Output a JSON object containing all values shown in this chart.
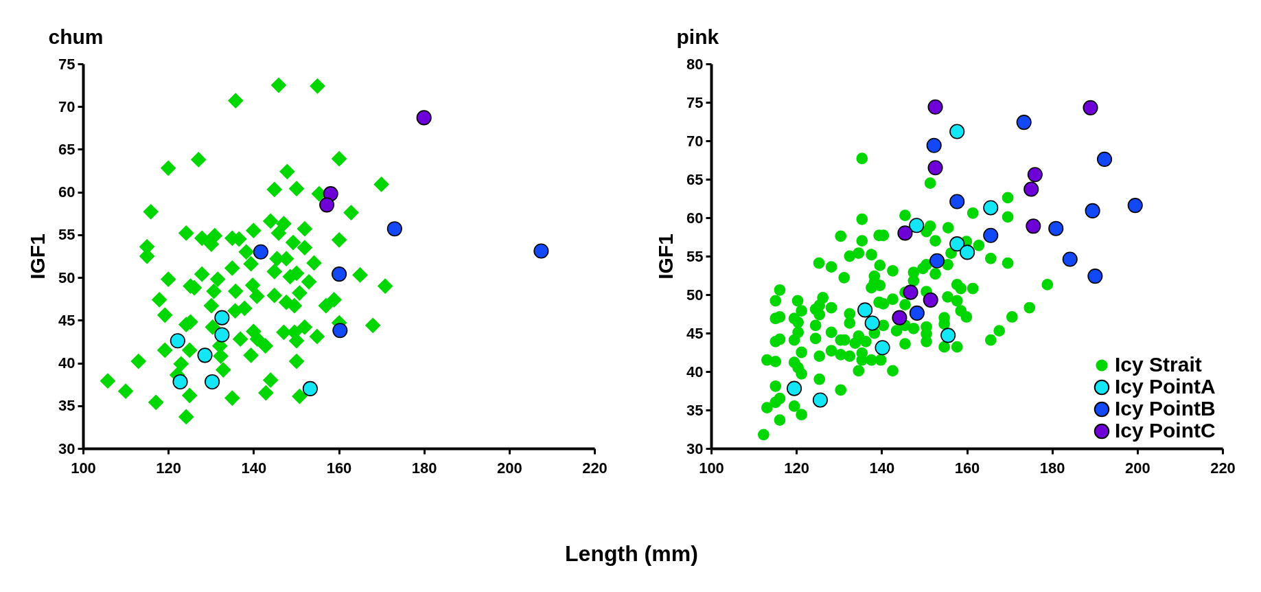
{
  "chart_data": [
    {
      "type": "scatter",
      "title": "chum",
      "xlabel": "Length (mm)",
      "ylabel": "IGF1",
      "xlim": [
        100,
        220
      ],
      "xticks": [
        100,
        120,
        140,
        160,
        180,
        200,
        220
      ],
      "ylim": [
        30,
        75
      ],
      "yticks": [
        30,
        35,
        40,
        45,
        50,
        55,
        60,
        65,
        70,
        75
      ],
      "grid": false,
      "legend": false,
      "series": [
        {
          "color": "#00d600",
          "marker": "diamond",
          "x": [
            105.8,
            110,
            113,
            115,
            115,
            115.9,
            117.1,
            117.9,
            119.2,
            119.2,
            120,
            120,
            123,
            122.1,
            124.2,
            124.2,
            124.2,
            125.2,
            125,
            125,
            125.2,
            126.1,
            127.1,
            127.9,
            130.1,
            127.9,
            130.9,
            130.1,
            130.7,
            131.6,
            130.4,
            132.1,
            132.3,
            132.9,
            135,
            135,
            135,
            135.8,
            135.8,
            136.6,
            135.7,
            137.9,
            136.9,
            138.3,
            140,
            139.4,
            139.8,
            140.8,
            140,
            139.4,
            140.9,
            142.8,
            144,
            142.9,
            144.9,
            144,
            147.1,
            145.9,
            145.9,
            144.9,
            150.1,
            147.9,
            145.5,
            147.7,
            144.9,
            149.3,
            148.6,
            150.1,
            152,
            152,
            154.2,
            147.7,
            149.6,
            150.8,
            153,
            147.1,
            149.6,
            150.1,
            152,
            154.9,
            150.1,
            150.8,
            155,
            155.4,
            157,
            158.9,
            160.1,
            160.1,
            160.1,
            162.9,
            165,
            168,
            170,
            170.9
          ],
          "values": [
            37.9,
            36.7,
            40.2,
            53.6,
            52.5,
            57.7,
            35.4,
            47.4,
            45.6,
            41.5,
            49.8,
            62.8,
            39.9,
            38.6,
            33.7,
            55.2,
            44.5,
            44.8,
            36.2,
            41.5,
            49,
            48.8,
            63.8,
            54.6,
            53.9,
            50.4,
            54.9,
            46.7,
            48.4,
            49.8,
            44.2,
            42,
            40.8,
            39.2,
            51.1,
            35.9,
            54.6,
            70.7,
            48.4,
            54.5,
            46.1,
            46.4,
            42.8,
            53,
            55.5,
            51.6,
            49.1,
            47.8,
            43.7,
            40.9,
            42.8,
            42,
            38,
            36.5,
            47.9,
            56.6,
            56.3,
            55.2,
            72.5,
            60.3,
            60.4,
            62.4,
            52.2,
            52.2,
            50.7,
            54.1,
            50.1,
            50.5,
            55.7,
            53.5,
            51.7,
            47.1,
            46.7,
            48.2,
            49.5,
            43.6,
            43.6,
            42.6,
            44.2,
            43.1,
            40.2,
            36.1,
            72.4,
            59.8,
            46.7,
            47.4,
            63.9,
            54.4,
            44.7,
            57.6,
            50.3,
            44.4,
            60.9,
            49
          ]
        },
        {
          "color": "#14e6f5",
          "marker": "circle",
          "x": [
            122.2,
            122.8,
            128.6,
            130.3,
            132.6,
            132.6,
            153.3
          ],
          "values": [
            42.6,
            37.8,
            40.9,
            37.8,
            45.3,
            43.3,
            37
          ]
        },
        {
          "color": "#1248f5",
          "marker": "circle",
          "x": [
            141.7,
            160.1,
            160.3,
            173.1,
            207.5
          ],
          "values": [
            53,
            50.4,
            43.8,
            55.7,
            53.1
          ]
        },
        {
          "color": "#6e00d8",
          "marker": "circle",
          "x": [
            158.1,
            157.2,
            180
          ],
          "values": [
            59.8,
            58.5,
            68.7
          ]
        }
      ]
    },
    {
      "type": "scatter",
      "title": "pink",
      "ylabel": "IGF1",
      "xlim": [
        100,
        220
      ],
      "xticks": [
        100,
        120,
        140,
        160,
        180,
        200,
        220
      ],
      "ylim": [
        30,
        80
      ],
      "yticks": [
        30,
        35,
        40,
        45,
        50,
        55,
        60,
        65,
        70,
        75,
        80
      ],
      "grid": false,
      "legend": "bottom right",
      "series": [
        {
          "name": "Icy Strait",
          "color": "#00d600",
          "marker": "circle",
          "x": [
            112.3,
            113.1,
            116.1,
            115.1,
            116.1,
            115.1,
            119.5,
            121.2,
            113.1,
            115.1,
            119.5,
            120.4,
            121.2,
            121.2,
            115.1,
            116.1,
            119.5,
            120.4,
            115.1,
            116.1,
            119.5,
            120.4,
            121.2,
            115.1,
            116.1,
            120.3,
            124.5,
            124.5,
            125.4,
            125.4,
            124.5,
            125.4,
            125.4,
            126.2,
            128.2,
            128.2,
            128.2,
            130.4,
            130.4,
            130.4,
            132.5,
            132.5,
            132.5,
            131.3,
            134.6,
            135.4,
            137.6,
            139.8,
            135.4,
            134.6,
            136.3,
            133.8,
            142.6,
            125.3,
            128.2,
            131.2,
            132.5,
            134.6,
            130.4,
            135.4,
            135.4,
            135.4,
            137.6,
            139.4,
            140.4,
            139.6,
            142.6,
            138.3,
            138.3,
            137.6,
            139.6,
            139.4,
            140.4,
            142.6,
            138.3,
            140.4,
            143.5,
            145.5,
            145.5,
            147.5,
            145.5,
            145.5,
            147.5,
            147.5,
            145.5,
            150.5,
            150.5,
            150.5,
            150.5,
            149.7,
            150.5,
            150.5,
            151.4,
            152.6,
            151.4,
            155.6,
            155.5,
            156.3,
            152.6,
            154.7,
            154.7,
            154.7,
            157.7,
            155.5,
            157.7,
            157.7,
            158.6,
            158.6,
            159.9,
            161.4,
            161.4,
            162.8,
            159.9,
            165.6,
            165.6,
            169.6,
            169.6,
            169.6,
            178.9,
            174.7,
            170.6,
            167.6
          ],
          "values": [
            31.8,
            35.3,
            33.7,
            36,
            36.5,
            38.1,
            35.5,
            34.4,
            41.5,
            41.3,
            41.2,
            40.5,
            39.7,
            42.5,
            43.9,
            44.2,
            44.1,
            45.1,
            46.9,
            47.1,
            46.9,
            46.4,
            47.9,
            49.2,
            50.6,
            49.2,
            46,
            44.3,
            42,
            39,
            48.1,
            48.6,
            47.4,
            49.6,
            48.3,
            45.1,
            42.7,
            42.2,
            37.6,
            44.1,
            42,
            47.5,
            46.3,
            44.1,
            40.1,
            41.5,
            41.5,
            41.5,
            42.4,
            44.6,
            43.9,
            43.7,
            40.1,
            54.1,
            53.6,
            52.2,
            55,
            55.4,
            57.6,
            59.8,
            67.7,
            57,
            55.2,
            57.7,
            57.7,
            53.8,
            53.1,
            52.4,
            51.6,
            50.9,
            51.2,
            49,
            48.8,
            49.4,
            45,
            46,
            45.3,
            43.6,
            46,
            45.6,
            50.3,
            48.7,
            52.9,
            51.8,
            60.3,
            45.8,
            44.9,
            43.9,
            50.4,
            53.4,
            53.9,
            58.2,
            58.9,
            57,
            64.5,
            58.7,
            53.9,
            55.4,
            52.7,
            47,
            46.2,
            43.2,
            43.2,
            49.7,
            49.2,
            51.3,
            50.8,
            47.9,
            47.1,
            50.8,
            60.6,
            56.4,
            56.9,
            54.7,
            44.1,
            62.6,
            60.1,
            54.1,
            51.3,
            48.3,
            47.1,
            45.3
          ]
        },
        {
          "name": "Icy PointA",
          "color": "#14e6f5",
          "marker": "circle",
          "x": [
            119.5,
            125.6,
            136.1,
            137.8,
            140.2,
            148.2,
            157.7,
            157.7,
            160.1,
            155.6,
            165.6
          ],
          "values": [
            37.8,
            36.3,
            48,
            46.3,
            43.1,
            59,
            71.2,
            56.6,
            55.5,
            44.7,
            61.3
          ]
        },
        {
          "name": "Icy PointB",
          "color": "#1248f5",
          "marker": "circle",
          "x": [
            152.3,
            157.7,
            165.6,
            153,
            148.3,
            173.4,
            192.3,
            189.5,
            199.5,
            180.9,
            184.2,
            190.1
          ],
          "values": [
            69.4,
            62.1,
            57.7,
            54.4,
            47.6,
            72.4,
            67.6,
            60.9,
            61.6,
            58.6,
            54.6,
            52.4
          ]
        },
        {
          "name": "Icy PointC",
          "color": "#6e00d8",
          "marker": "circle",
          "x": [
            152.6,
            152.6,
            145.5,
            146.8,
            151.5,
            144.2,
            189,
            176,
            175.1,
            175.6
          ],
          "values": [
            74.4,
            66.5,
            58,
            50.3,
            49.3,
            47,
            74.3,
            65.6,
            63.7,
            58.9
          ]
        }
      ]
    }
  ]
}
